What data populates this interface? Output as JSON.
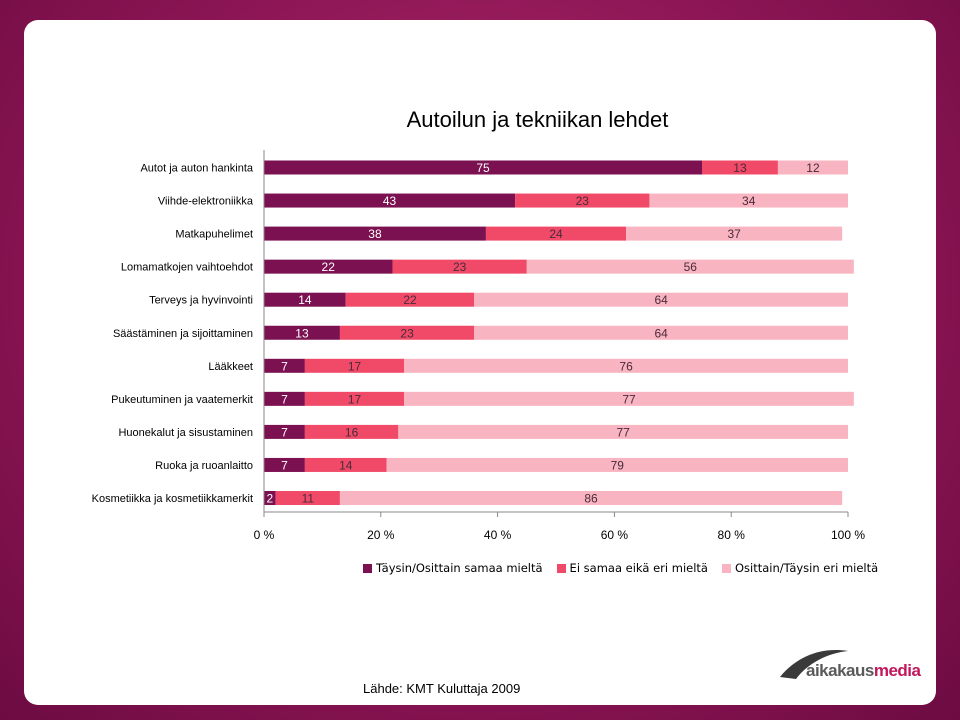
{
  "chart_data": {
    "type": "bar",
    "orientation": "horizontal",
    "stacked": true,
    "title": "Autoilun ja tekniikan lehdet",
    "categories": [
      "Autot ja auton hankinta",
      "Viihde-elektroniikka",
      "Matkapuhelimet",
      "Lomamatkojen vaihtoehdot",
      "Terveys ja hyvinvointi",
      "Säästäminen ja sijoittaminen",
      "Lääkkeet",
      "Pukeutuminen ja vaatemerkit",
      "Huonekalut ja sisustaminen",
      "Ruoka ja ruoanlaitto",
      "Kosmetiikka ja kosmetiikkamerkit"
    ],
    "series": [
      {
        "name": "Täysin/Osittain samaa mieltä",
        "color": "#7b1150",
        "values": [
          75,
          43,
          38,
          22,
          14,
          13,
          7,
          7,
          7,
          7,
          2
        ]
      },
      {
        "name": "Ei samaa eikä eri mieltä",
        "color": "#f04a68",
        "values": [
          13,
          23,
          24,
          23,
          22,
          23,
          17,
          17,
          16,
          14,
          11
        ]
      },
      {
        "name": "Osittain/Täysin eri mieltä",
        "color": "#f9b4c1",
        "values": [
          12,
          34,
          37,
          56,
          64,
          64,
          76,
          77,
          77,
          79,
          86
        ]
      }
    ],
    "xticks": [
      "0 %",
      "20 %",
      "40 %",
      "60 %",
      "80 %",
      "100 %"
    ],
    "xlim": [
      0,
      100
    ],
    "legend": "bottom"
  },
  "source": "Lähde: KMT Kuluttaja 2009",
  "logo": {
    "part1": "aikakaus",
    "part2": "media"
  }
}
